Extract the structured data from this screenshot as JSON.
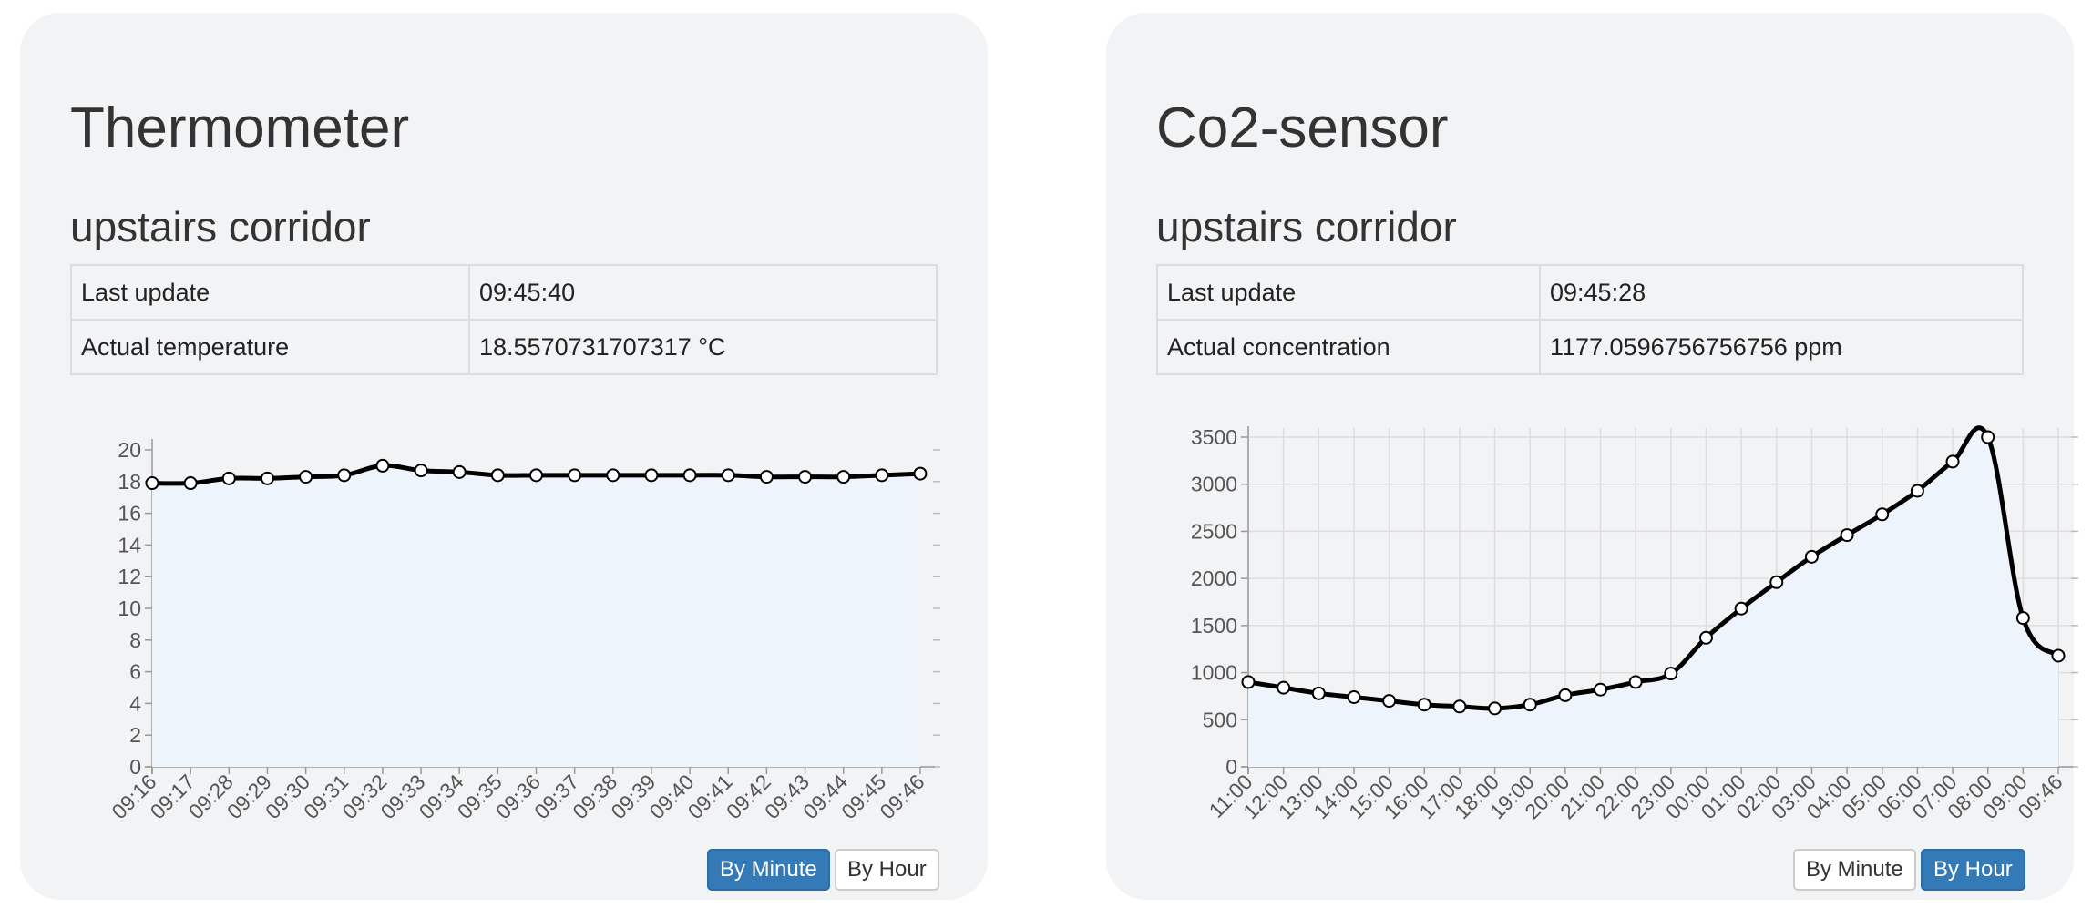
{
  "cards": [
    {
      "title": "Thermometer",
      "location": "upstairs corridor",
      "table": [
        {
          "label": "Last update",
          "value": "09:45:40"
        },
        {
          "label": "Actual temperature",
          "value": "18.5570731707317 °C"
        }
      ],
      "buttons": [
        {
          "label": "By Minute",
          "active": true
        },
        {
          "label": "By Hour",
          "active": false
        }
      ]
    },
    {
      "title": "Co2-sensor",
      "location": "upstairs corridor",
      "table": [
        {
          "label": "Last update",
          "value": "09:45:28"
        },
        {
          "label": "Actual concentration",
          "value": "1177.0596756756756 ppm"
        }
      ],
      "buttons": [
        {
          "label": "By Minute",
          "active": false
        },
        {
          "label": "By Hour",
          "active": true
        }
      ]
    }
  ],
  "colors": {
    "card_bg": "#f2f3f5",
    "line": "#000000",
    "fill": "#eef4fc",
    "grid": "#dddddd",
    "button_active": "#337ab7"
  },
  "chart_data": [
    {
      "type": "line",
      "categories": [
        "09:16",
        "09:17",
        "09:28",
        "09:29",
        "09:30",
        "09:31",
        "09:32",
        "09:33",
        "09:34",
        "09:35",
        "09:36",
        "09:37",
        "09:38",
        "09:39",
        "09:40",
        "09:41",
        "09:42",
        "09:43",
        "09:44",
        "09:45",
        "09:46"
      ],
      "series": [
        {
          "values": [
            17.9,
            17.9,
            18.2,
            18.2,
            18.3,
            18.4,
            19.0,
            18.7,
            18.6,
            18.4,
            18.4,
            18.4,
            18.4,
            18.4,
            18.4,
            18.4,
            18.3,
            18.3,
            18.3,
            18.4,
            18.5
          ]
        }
      ],
      "ylim": [
        0,
        20
      ],
      "yticks": [
        0,
        2,
        4,
        6,
        8,
        10,
        12,
        14,
        16,
        18,
        20
      ],
      "grid": false,
      "filled": true
    },
    {
      "type": "line",
      "categories": [
        "11:00",
        "12:00",
        "13:00",
        "14:00",
        "15:00",
        "16:00",
        "17:00",
        "18:00",
        "19:00",
        "20:00",
        "21:00",
        "22:00",
        "23:00",
        "00:00",
        "01:00",
        "02:00",
        "03:00",
        "04:00",
        "05:00",
        "06:00",
        "07:00",
        "08:00",
        "09:00",
        "09:46"
      ],
      "series": [
        {
          "values": [
            900,
            840,
            780,
            740,
            700,
            660,
            640,
            620,
            660,
            760,
            820,
            900,
            990,
            1370,
            1680,
            1960,
            2230,
            2460,
            2680,
            2930,
            3240,
            3500,
            1580,
            1180
          ]
        }
      ],
      "ylim": [
        0,
        3500
      ],
      "yticks": [
        0,
        500,
        1000,
        1500,
        2000,
        2500,
        3000,
        3500
      ],
      "grid": true,
      "filled": true
    }
  ]
}
